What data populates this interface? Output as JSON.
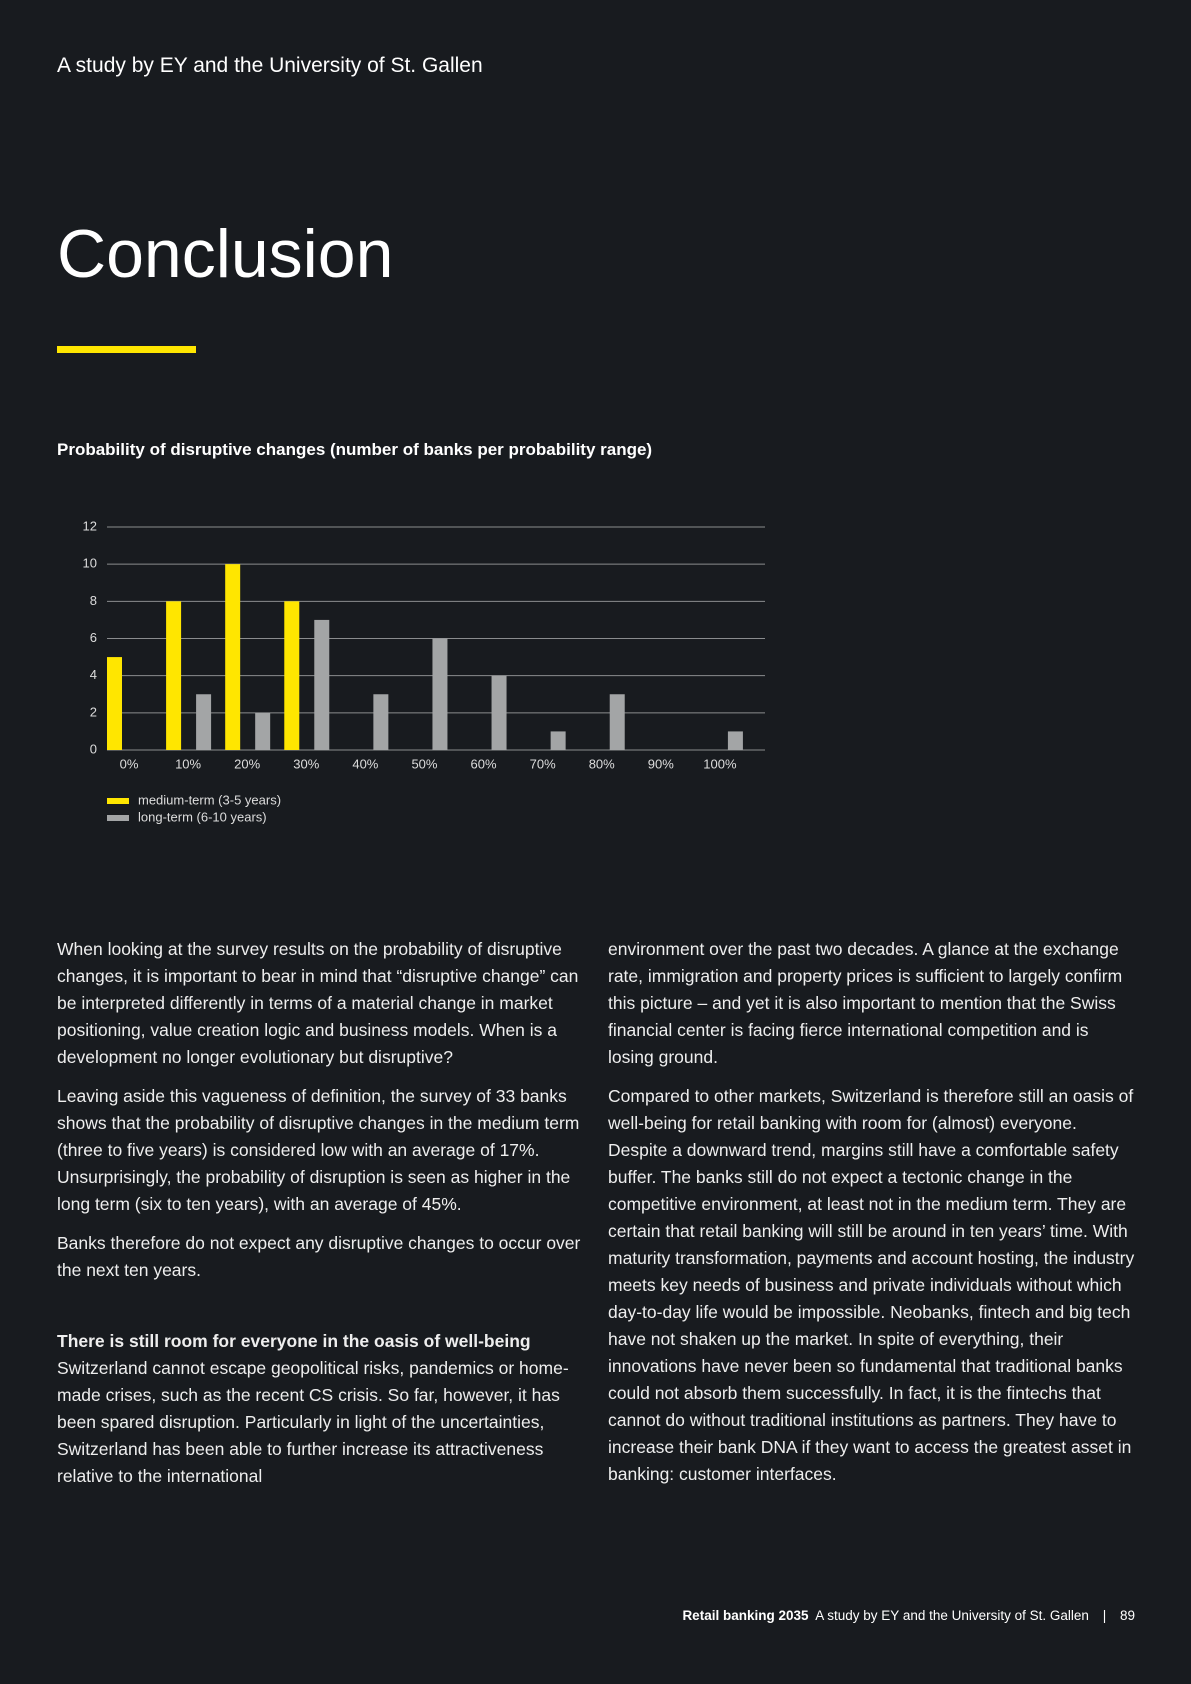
{
  "header": "A study by EY and the University of St. Gallen",
  "title": "Conclusion",
  "chart_data": {
    "type": "bar",
    "title": "Probability of disruptive changes (number of banks per probability range)",
    "categories": [
      "0%",
      "10%",
      "20%",
      "30%",
      "40%",
      "50%",
      "60%",
      "70%",
      "80%",
      "90%",
      "100%"
    ],
    "series": [
      {
        "name": "medium-term (3-5 years)",
        "color": "#ffe600",
        "values": [
          5,
          8,
          10,
          8,
          0,
          0,
          0,
          0,
          0,
          0,
          0
        ]
      },
      {
        "name": "long-term (6-10 years)",
        "color": "#a3a5a6",
        "values": [
          0,
          3,
          2,
          7,
          3,
          6,
          4,
          1,
          3,
          0,
          1
        ]
      }
    ],
    "ylim": [
      0,
      12
    ],
    "yticks": [
      0,
      2,
      4,
      6,
      8,
      10,
      12
    ],
    "grid": true
  },
  "body": {
    "left": [
      "When looking at the survey results on the probability of disruptive changes, it is important to bear in mind that “disruptive change” can be interpreted differently in terms of a material change in market positioning, value creation logic and business models. When is a development no longer evolutionary but disruptive?",
      "Leaving aside this vagueness of definition, the survey of 33 banks shows that the probability of disruptive changes in the medium term (three to five years) is considered low with an average of 17%. Unsurprisingly, the probability of disruption is seen as higher in the long term (six to ten years), with an average of 45%.",
      "Banks therefore do not expect any disruptive changes to occur over the next ten years."
    ],
    "heading": "There is still room for everyone in the oasis of well-being",
    "section": "Switzerland cannot escape geopolitical risks, pandemics or home-made crises, such as the recent CS crisis. So far, however, it has been spared disruption. Particularly in light of the uncertainties, Switzerland has been able to further increase its attractiveness relative to the international",
    "right": [
      "environment over the past two decades. A glance at the exchange rate, immigration and property prices is sufficient to largely confirm this picture – and yet it is also important to mention that the Swiss financial center is facing fierce international competition and is losing ground.",
      "Compared to other markets, Switzerland is therefore still an oasis of well-being for retail banking with room for (almost) everyone. Despite a downward trend, margins still have a comfortable safety buffer. The banks still do not expect a tectonic change in the competitive environment, at least not in the medium term. They are certain that retail banking will still be around in ten years’ time. With maturity transformation, payments and account hosting, the industry meets key needs of business and private individuals without which day-to-day life would be impossible. Neobanks, fintech and big tech have not shaken up the market. In spite of everything, their innovations have never been so fundamental that traditional banks could not absorb them successfully. In fact, it is the fintechs that cannot do without traditional institutions as partners. They have to increase their bank DNA if they want to access the greatest asset in banking: customer interfaces."
    ]
  },
  "footer": {
    "title": "Retail banking 2035",
    "subtitle": "A study by EY and the University of St. Gallen",
    "page": "89"
  }
}
